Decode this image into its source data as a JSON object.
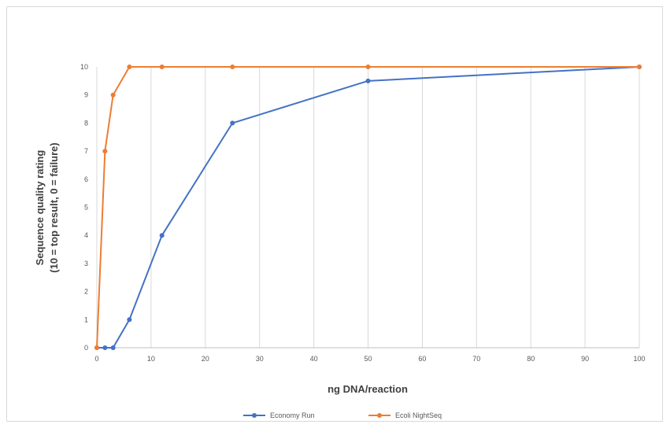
{
  "chart_data": {
    "type": "line",
    "title": "",
    "xlabel": "ng DNA/reaction",
    "ylabel_lines": [
      "Sequence quality rating",
      "(10 = top result, 0 = failure)"
    ],
    "xlim": [
      0,
      100
    ],
    "ylim": [
      0,
      10
    ],
    "x_ticks": [
      0,
      10,
      20,
      30,
      40,
      50,
      60,
      70,
      80,
      90,
      100
    ],
    "y_ticks": [
      0,
      1,
      2,
      3,
      4,
      5,
      6,
      7,
      8,
      9,
      10
    ],
    "grid": "vertical",
    "legend_position": "bottom",
    "series": [
      {
        "name": "Economy Run",
        "color": "#4472c4",
        "x": [
          0,
          1.5,
          3,
          6,
          12,
          25,
          50,
          100
        ],
        "y": [
          0,
          0,
          0,
          1,
          4,
          8,
          9.5,
          10
        ]
      },
      {
        "name": "Ecoli NightSeq",
        "color": "#ed7d31",
        "x": [
          0,
          1.5,
          3,
          6,
          12,
          25,
          50,
          100
        ],
        "y": [
          0,
          7,
          9,
          10,
          10,
          10,
          10,
          10
        ]
      }
    ]
  }
}
